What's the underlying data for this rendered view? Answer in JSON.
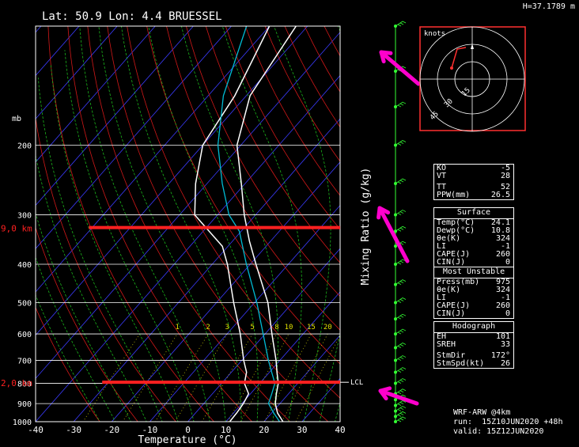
{
  "header": {
    "location": "Lat: 50.9 Lon: 4.4  BRUESSEL",
    "height": "H=37.1789  m"
  },
  "chart_data": {
    "type": "line",
    "title": "Lat: 50.9 Lon: 4.4  BRUESSEL",
    "xlabel": "Temperature (°C)",
    "ylabel": "mb",
    "secondary_label": "Mixing Ratio (g/kg)",
    "xlim": [
      -40,
      40
    ],
    "ylim_mb": [
      1000,
      100
    ],
    "x_ticks": [
      "-40",
      "-30",
      "-20",
      "-10",
      "0",
      "10",
      "20",
      "30",
      "40"
    ],
    "y_ticks": [
      "1000",
      "900",
      "800",
      "700",
      "600",
      "500",
      "400",
      "300",
      "200"
    ],
    "mixing_ratio_labels": [
      "1",
      "2",
      "3",
      "5",
      "8",
      "10",
      "15",
      "20"
    ],
    "series": [
      {
        "name": "Temperature",
        "p": [
          1000,
          950,
          900,
          850,
          800,
          750,
          700,
          600,
          500,
          400,
          350,
          300,
          250,
          200,
          150,
          100
        ],
        "t": [
          25.0,
          21.5,
          18.8,
          16.8,
          14.9,
          12.0,
          9.0,
          1.8,
          -6.5,
          -18.5,
          -25.5,
          -33.0,
          -41.0,
          -51.0,
          -59.0,
          -63.0
        ]
      },
      {
        "name": "Dewpoint",
        "p": [
          1000,
          950,
          900,
          850,
          800,
          750,
          700,
          600,
          500,
          400,
          360,
          300,
          250,
          200,
          150,
          100
        ],
        "t": [
          11.0,
          10.8,
          10.4,
          9.5,
          6.0,
          4.0,
          0.5,
          -6.5,
          -15.5,
          -26.0,
          -31.5,
          -46.0,
          -53.0,
          -60.0,
          -63.0,
          -70.0
        ]
      },
      {
        "name": "Parcel",
        "p": [
          1000,
          950,
          900,
          850,
          800,
          750,
          700,
          600,
          500,
          400,
          330,
          300,
          250,
          200,
          150,
          100
        ],
        "t": [
          24.1,
          20.5,
          17.0,
          15.6,
          14.0,
          10.6,
          7.0,
          -0.5,
          -9.4,
          -21.0,
          -30.5,
          -37.0,
          -46.0,
          -56.0,
          -66.0,
          -76.0
        ]
      }
    ],
    "annotations": [
      {
        "label": "9,0 km",
        "p": 323,
        "t_from": -26,
        "t_to": 40
      },
      {
        "label": "2,0 km",
        "p": 795,
        "t_from": -22.5,
        "t_to": 40
      },
      {
        "label": "LCL",
        "p": 795
      }
    ],
    "wind_profile_p": [
      100,
      130,
      160,
      200,
      250,
      300,
      330,
      360,
      400,
      450,
      500,
      550,
      600,
      650,
      700,
      750,
      800,
      850,
      880,
      910,
      940,
      970,
      1000
    ],
    "hodograph": {
      "label": "knots",
      "rings": [
        "15",
        "30",
        "45"
      ]
    }
  },
  "indices": {
    "group1": [
      {
        "label": "KO",
        "value": "-5"
      },
      {
        "label": "VT",
        "value": "28"
      },
      {
        "label": "TT",
        "value": "52"
      },
      {
        "label": "PPW(mm)",
        "value": "26.5"
      }
    ],
    "surface_title": "Surface",
    "surface": [
      {
        "label": "Temp(°C)",
        "value": "24.1"
      },
      {
        "label": "Dewp(°C)",
        "value": "10.8"
      },
      {
        "label": "θe(K)",
        "value": "324"
      },
      {
        "label": "LI",
        "value": "-1"
      },
      {
        "label": "CAPE(J)",
        "value": "260"
      },
      {
        "label": "CIN(J)",
        "value": "0"
      }
    ],
    "unstable_title": "Most  Unstable",
    "unstable": [
      {
        "label": "Press(mb)",
        "value": "975"
      },
      {
        "label": "θe(K)",
        "value": "324"
      },
      {
        "label": "LI",
        "value": "-1"
      },
      {
        "label": "CAPE(J)",
        "value": "260"
      },
      {
        "label": "CIN(J)",
        "value": "0"
      }
    ],
    "hodograph_title": "Hodograph",
    "hodograph": [
      {
        "label": "EH",
        "value": "101"
      },
      {
        "label": "SREH",
        "value": "33"
      },
      {
        "label": "StmDir",
        "value": "172°"
      },
      {
        "label": "StmSpd(kt)",
        "value": "26"
      }
    ]
  },
  "footer": {
    "model": "WRF-ARW @4km",
    "run": "run:  15Z10JUN2020 +48h",
    "valid": "valid: 15Z12JUN2020"
  },
  "colors": {
    "temperature": "#ffffff",
    "dewpoint": "#ffffff",
    "parcel": "#00bcd4",
    "cape_fill": "#ffcc00",
    "isotherm": "#3b3bff",
    "isobar": "#ffffff",
    "dry_adiabat": "#d01818",
    "moist_adiabat": "#1bb41b",
    "mixing_ratio": "#e0e000",
    "annotation_line": "#ff2020",
    "annotation_text": "#ff2020",
    "arrow": "#ff00cc",
    "wind": "#33ff33",
    "hodo_frame": "#ff3030"
  }
}
